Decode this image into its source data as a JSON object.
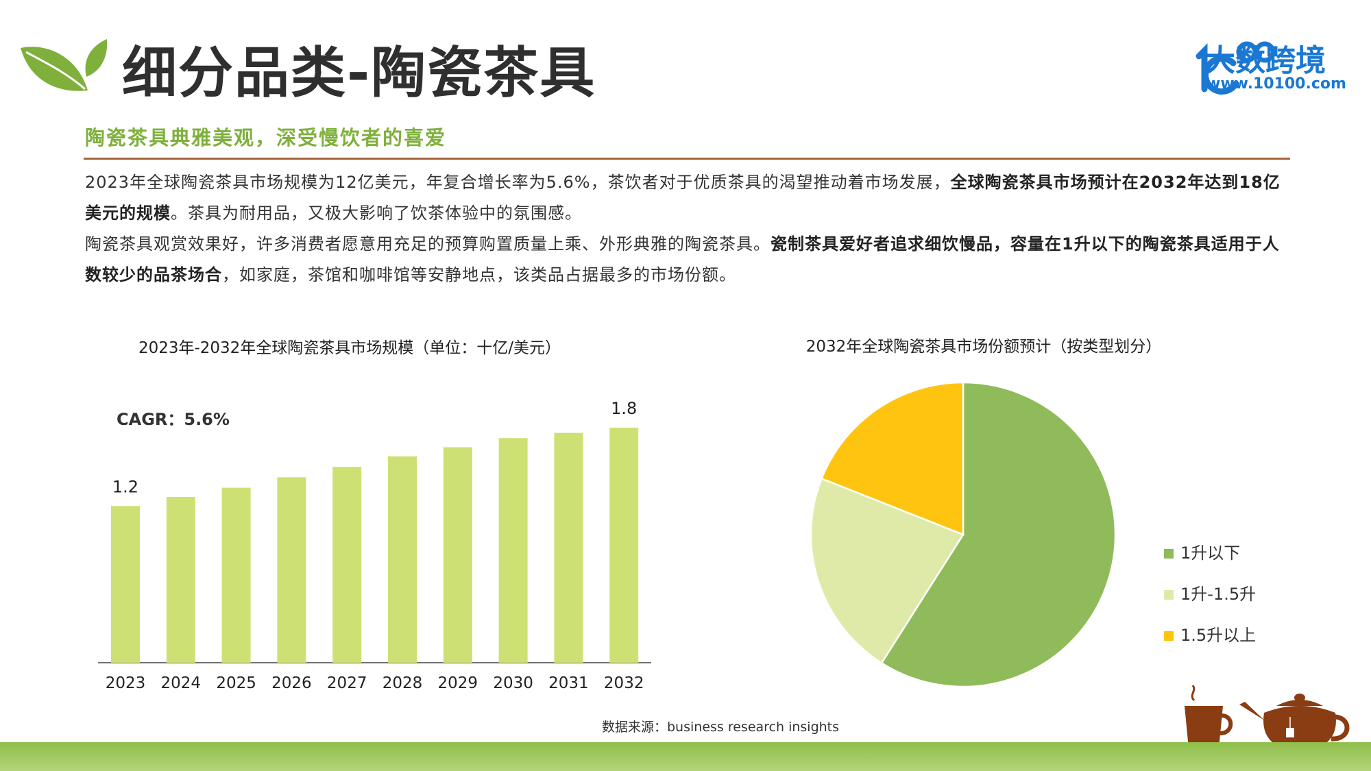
{
  "header": {
    "title": "细分品类-陶瓷茶具",
    "subtitle": "陶瓷茶具典雅美观，深受慢饮者的喜爱",
    "brand_name": "大数跨境",
    "brand_url": "www.10100.com",
    "brand_mark": "10100"
  },
  "body": {
    "p1_a": "2023年全球陶瓷茶具市场规模为12亿美元，年复合增长率为5.6%，茶饮者对于优质茶具的渴望推动着市场发展，",
    "p1_b": "全球陶瓷茶具市场预计在2032年达到18亿美元的规模",
    "p1_c": "。茶具为耐用品，又极大影响了饮茶体验中的氛围感。",
    "p2_a": "陶瓷茶具观赏效果好，许多消费者愿意用充足的预算购置质量上乘、外形典雅的陶瓷茶具。",
    "p2_b": "瓷制茶具爱好者追求细饮慢品，容量在1升以下的陶瓷茶具适用于人数较少的品茶场合",
    "p2_c": "，如家庭，茶馆和咖啡馆等安静地点，该类品占据最多的市场份额。"
  },
  "source": "数据来源：business research insights",
  "colors": {
    "bar": "#cde073",
    "pie_under_1l": "#8fbb5a",
    "pie_1_to_1_5l": "#e0eaa8",
    "pie_over_1_5l": "#ffc410",
    "accent_green": "#7fb03c",
    "divider": "#a9643a",
    "brand_blue": "#1a78d2"
  },
  "chart_data": [
    {
      "type": "bar",
      "title": "2023年-2032年全球陶瓷茶具市场规模（单位：十亿/美元）",
      "annotation": "CAGR：5.6%",
      "categories": [
        "2023",
        "2024",
        "2025",
        "2026",
        "2027",
        "2028",
        "2029",
        "2030",
        "2031",
        "2032"
      ],
      "values": [
        1.2,
        1.27,
        1.34,
        1.42,
        1.5,
        1.58,
        1.65,
        1.72,
        1.76,
        1.8
      ],
      "data_labels": {
        "0": "1.2",
        "9": "1.8"
      },
      "ylim": [
        0,
        2.0
      ],
      "grid": false
    },
    {
      "type": "pie",
      "title": "2032年全球陶瓷茶具市场份额预计（按类型划分）",
      "labels": [
        "1升以下",
        "1升-1.5升",
        "1.5升以上"
      ],
      "values": [
        59,
        22,
        19
      ],
      "legend": "right"
    }
  ]
}
